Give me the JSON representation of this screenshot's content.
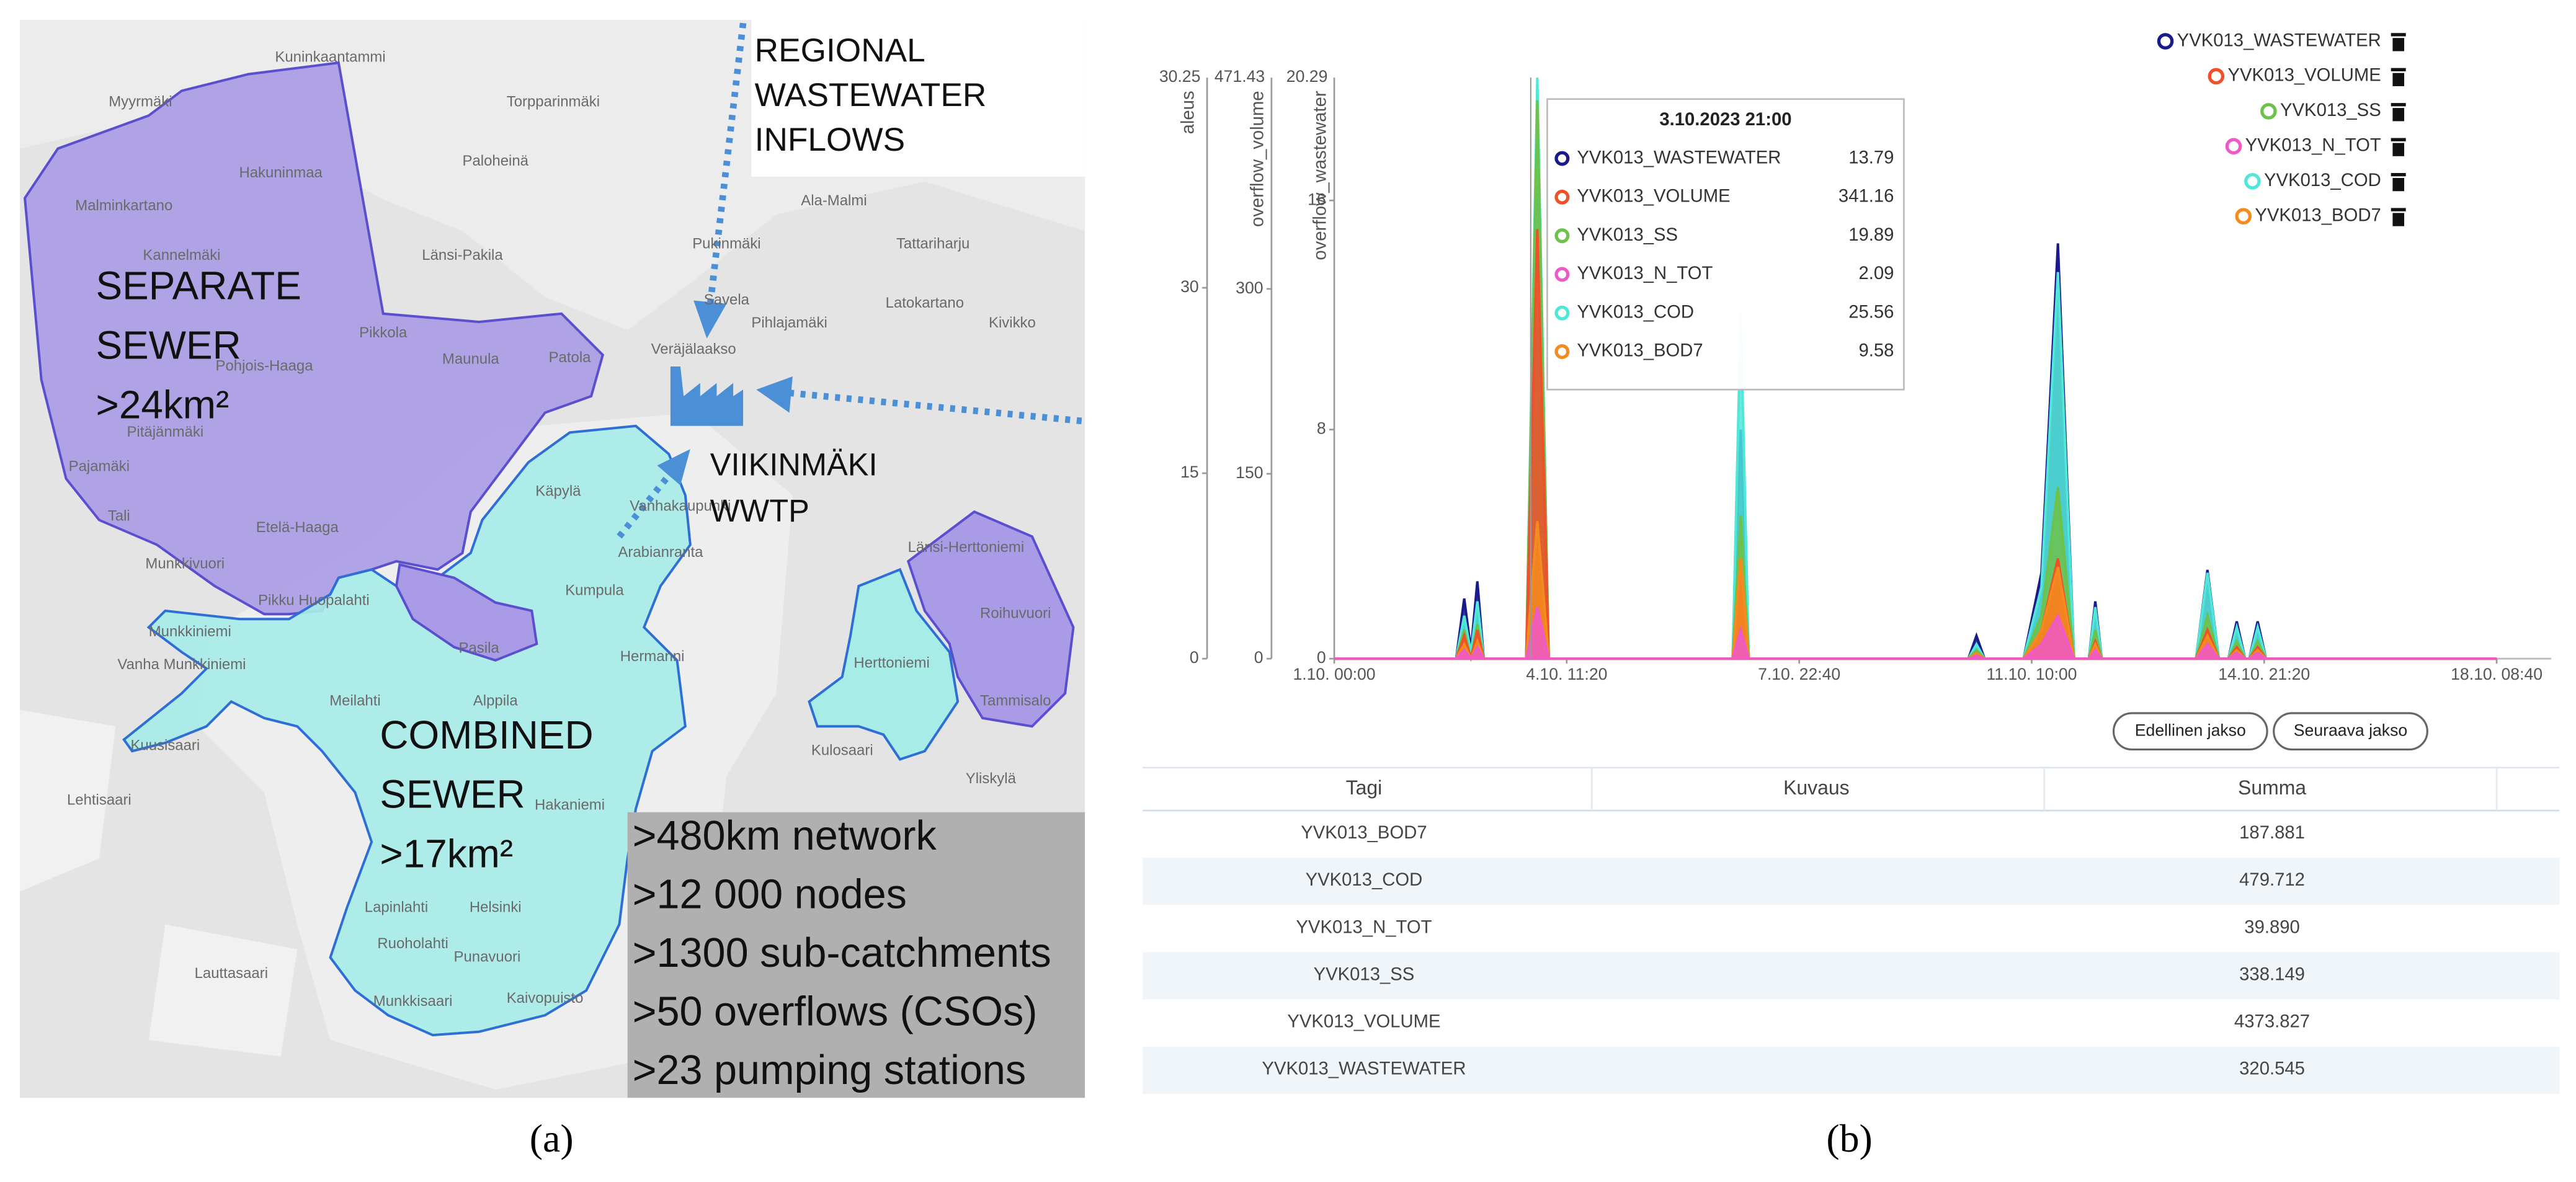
{
  "panel_a": {
    "caption": "(a)",
    "inflows_label": [
      "REGIONAL",
      "WASTEWATER",
      "INFLOWS"
    ],
    "wwtp_label": [
      "VIIKINMÄKI",
      "WWTP"
    ],
    "separate_label": [
      "SEPARATE",
      "SEWER",
      ">24km²"
    ],
    "combined_label": [
      "COMBINED",
      "SEWER",
      ">17km²"
    ],
    "stats": [
      ">480km network",
      ">12 000 nodes",
      ">1300 sub-catchments",
      ">50 overflows (CSOs)",
      ">23 pumping stations"
    ],
    "place_names": [
      "Kuninkaantammi",
      "Myyrmäki",
      "Torpparinmäki",
      "Hakuninmaa",
      "Paloheinä",
      "Malminkartano",
      "Ala-Malmi",
      "Kannelmäki",
      "Länsi-Pakila",
      "Pukinmäki",
      "Tattariharju",
      "Pikkola",
      "Maunula",
      "Patola",
      "Savela",
      "Latokartano",
      "Kivikko",
      "Pihlajamäki",
      "Veräjälaakso",
      "Pohjois-Haaga",
      "Pitäjänmäki",
      "Pajamäki",
      "Käpylä",
      "Vanhakaupunki",
      "Tali",
      "Etelä-Haaga",
      "Arabianranta",
      "Länsi-Herttoniemi",
      "Munkkivuori",
      "Kumpula",
      "Roihuvuori",
      "Pikku Huopalahti",
      "Munkkiniemi",
      "Pasila",
      "Hermanni",
      "Vanha Munkkiniemi",
      "Herttoniemi",
      "Meilahti",
      "Alppila",
      "Tammisalo",
      "Kuusisaari",
      "Kulosaari",
      "Lehtisaari",
      "Yliskylä",
      "Lapinlahti",
      "Ruoholahti",
      "Punavuori",
      "Lauttasaari",
      "Munkkisaari",
      "Kaivopuisto",
      "Helsinki",
      "Hakaniemi"
    ]
  },
  "panel_b": {
    "caption": "(b)",
    "chart_data": {
      "type": "area",
      "axes": [
        {
          "label": "aleus",
          "max_label": "30.25",
          "ylim": [
            0,
            47
          ],
          "yticks": [
            0,
            15,
            30
          ]
        },
        {
          "label": "overflow_volume",
          "max_label": "471.43",
          "ylim": [
            0,
            471.43
          ],
          "yticks": [
            0,
            150,
            300
          ]
        },
        {
          "label": "overflow_wastewater",
          "max_label": "20.29",
          "ylim": [
            0,
            20.29
          ],
          "yticks": [
            0,
            8,
            16
          ]
        }
      ],
      "xlim": [
        0,
        416.67
      ],
      "xticks": [
        {
          "value": 0,
          "label": "1.10. 00:00"
        },
        {
          "value": 83.33,
          "label": "4.10. 11:20"
        },
        {
          "value": 166.67,
          "label": "7.10. 22:40"
        },
        {
          "value": 250,
          "label": "11.10. 10:00"
        },
        {
          "value": 333.33,
          "label": "14.10. 21:20"
        },
        {
          "value": 416.67,
          "label": "18.10. 08:40"
        }
      ],
      "x": [
        0,
        43.7,
        46.6,
        49.0,
        51.3,
        53.6,
        68.8,
        72.8,
        76.9,
        142.8,
        145.7,
        148.6,
        227.3,
        230.2,
        233.1,
        247.1,
        253.5,
        259.4,
        265.2,
        270.5,
        272.8,
        275.1,
        308.9,
        313.0,
        317.1,
        320.5,
        323.5,
        326.5,
        328.0,
        331.0,
        334.0,
        416.67
      ],
      "series": [
        {
          "name": "YVK013_WASTEWATER",
          "color": "#1a1a8c",
          "values": [
            0,
            0,
            2.1,
            0.3,
            2.7,
            0,
            0,
            16.5,
            0,
            0,
            8,
            0,
            0,
            0.8,
            0,
            0,
            3,
            14.5,
            0,
            0,
            2,
            0,
            0,
            3.1,
            0,
            0,
            1.3,
            0,
            0,
            1.3,
            0,
            0
          ]
        },
        {
          "name": "YVK013_VOLUME",
          "color": "#f0502a",
          "values": [
            0,
            0,
            0.8,
            0,
            1,
            0,
            0,
            15,
            0,
            0,
            3,
            0,
            0,
            0.2,
            0,
            0,
            1,
            3.5,
            0,
            0,
            0.6,
            0,
            0,
            1,
            0,
            0,
            0.4,
            0,
            0,
            0.4,
            0,
            0
          ]
        },
        {
          "name": "YVK013_SS",
          "color": "#6cc24a",
          "values": [
            0,
            0,
            1,
            0,
            1.2,
            0,
            0,
            19.5,
            0,
            0,
            5,
            0,
            0,
            0.3,
            0,
            0,
            1.5,
            6,
            0,
            0,
            1,
            0,
            0,
            1.5,
            0,
            0,
            0.6,
            0,
            0,
            0.6,
            0,
            0
          ]
        },
        {
          "name": "YVK013_N_TOT",
          "color": "#f05ac8",
          "values": [
            0,
            0,
            0.3,
            0,
            0.4,
            0,
            0,
            1.8,
            0,
            0,
            1,
            0,
            0,
            0.1,
            0,
            0,
            0.5,
            1.5,
            0,
            0,
            0.3,
            0,
            0,
            0.5,
            0,
            0,
            0.2,
            0,
            0,
            0.2,
            0,
            0
          ]
        },
        {
          "name": "YVK013_COD",
          "color": "#4fe8d8",
          "values": [
            0,
            0,
            1.5,
            0.2,
            2,
            0,
            0,
            20.29,
            0,
            0,
            12,
            0,
            0,
            0.5,
            0,
            0,
            2.5,
            13.5,
            0,
            0,
            1.8,
            0,
            0,
            3,
            0,
            0,
            1.1,
            0,
            0,
            1.1,
            0,
            0
          ]
        },
        {
          "name": "YVK013_BOD7",
          "color": "#f58a1f",
          "values": [
            0,
            0,
            0.5,
            0,
            0.6,
            0,
            0,
            4.8,
            0,
            0,
            3.5,
            0,
            0,
            0.2,
            0,
            0,
            1,
            3.2,
            0,
            0,
            0.5,
            0,
            0,
            0.8,
            0,
            0,
            0.3,
            0,
            0,
            0.3,
            0,
            0
          ]
        }
      ],
      "draw_order": [
        0,
        4,
        2,
        1,
        5,
        3
      ],
      "tooltip": {
        "title": "3.10.2023 21:00",
        "names": [
          "YVK013_WASTEWATER",
          "YVK013_VOLUME",
          "YVK013_SS",
          "YVK013_N_TOT",
          "YVK013_COD",
          "YVK013_BOD7"
        ],
        "values": [
          13.79,
          341.16,
          19.89,
          2.09,
          25.56,
          9.58
        ]
      }
    },
    "buttons": [
      "Edellinen jakso",
      "Seuraava jakso"
    ],
    "table": {
      "header": [
        "Tagi",
        "Kuvaus",
        "Summa"
      ],
      "rows": [
        [
          "YVK013_BOD7",
          "",
          "187.881"
        ],
        [
          "YVK013_COD",
          "",
          "479.712"
        ],
        [
          "YVK013_N_TOT",
          "",
          "39.890"
        ],
        [
          "YVK013_SS",
          "",
          "338.149"
        ],
        [
          "YVK013_VOLUME",
          "",
          "4373.827"
        ],
        [
          "YVK013_WASTEWATER",
          "",
          "320.545"
        ]
      ]
    }
  }
}
